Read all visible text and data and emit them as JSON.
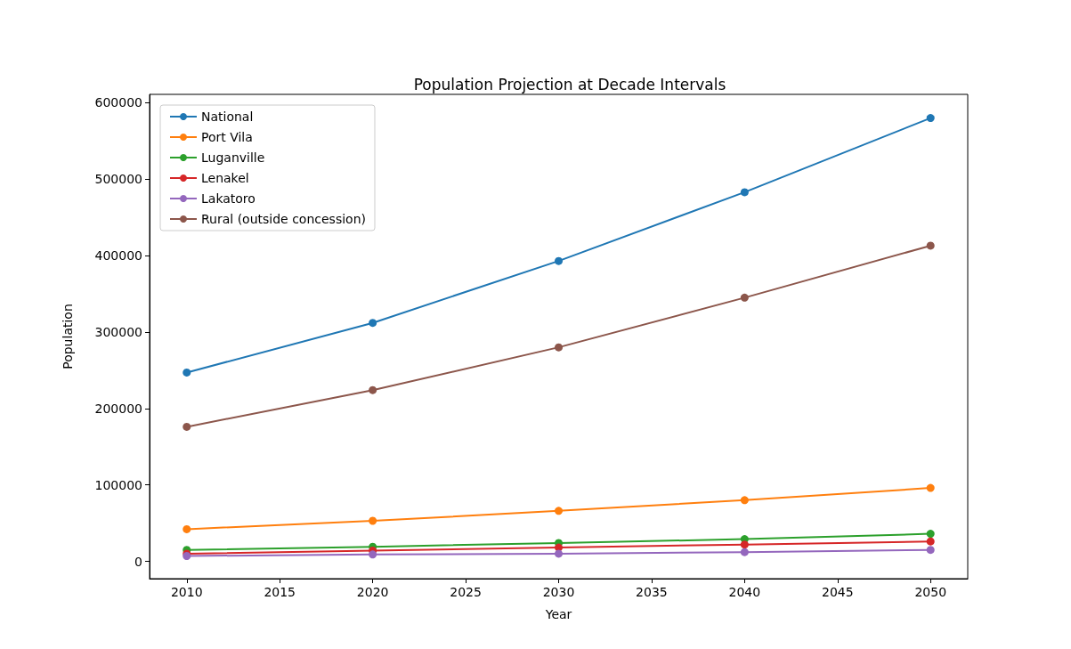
{
  "chart_data": {
    "type": "line",
    "title": "Population Projection at Decade Intervals",
    "xlabel": "Year",
    "ylabel": "Population",
    "x": [
      2010,
      2020,
      2030,
      2040,
      2050
    ],
    "series": [
      {
        "name": "National",
        "color": "#1f77b4",
        "values": [
          247000,
          312000,
          393000,
          483000,
          580000
        ]
      },
      {
        "name": "Port Vila",
        "color": "#ff7f0e",
        "values": [
          42000,
          53000,
          66000,
          80000,
          96000
        ]
      },
      {
        "name": "Luganville",
        "color": "#2ca02c",
        "values": [
          15000,
          19000,
          24000,
          29000,
          36000
        ]
      },
      {
        "name": "Lenakel",
        "color": "#d62728",
        "values": [
          10000,
          14000,
          18000,
          22000,
          26000
        ]
      },
      {
        "name": "Lakatoro",
        "color": "#9467bd",
        "values": [
          7000,
          9000,
          10000,
          12000,
          15000
        ]
      },
      {
        "name": "Rural (outside concession)",
        "color": "#8c564b",
        "values": [
          176000,
          224000,
          280000,
          345000,
          413000
        ]
      }
    ],
    "xlim": [
      2008,
      2052
    ],
    "xticks": [
      2010,
      2015,
      2020,
      2025,
      2030,
      2035,
      2040,
      2045,
      2050
    ],
    "ylim": [
      -22700,
      611000
    ],
    "yticks": [
      0,
      100000,
      200000,
      300000,
      400000,
      500000,
      600000
    ],
    "legend": "top left",
    "marker": "circle",
    "line_style": "solid",
    "grid": false
  }
}
